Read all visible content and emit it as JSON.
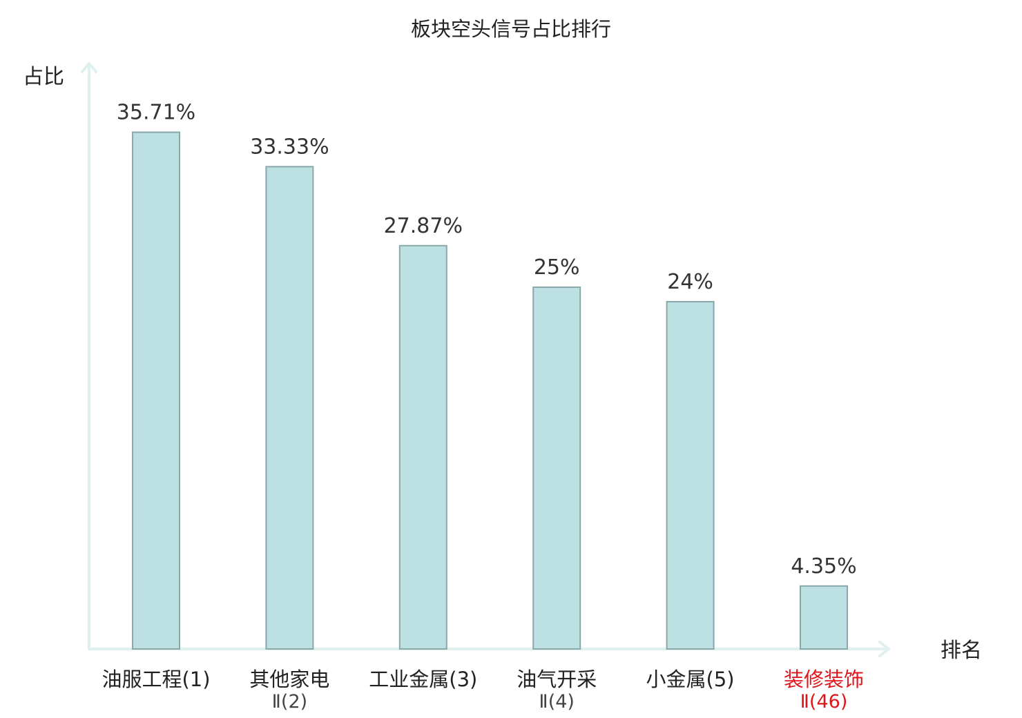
{
  "chart_data": {
    "type": "bar",
    "title": "板块空头信号占比排行",
    "ylabel": "占比",
    "xlabel": "排名",
    "ylim": [
      0,
      37.5
    ],
    "grid": false,
    "categories": [
      {
        "line1": "油服工程(1)",
        "line2": ""
      },
      {
        "line1": "其他家电",
        "line2": "Ⅱ(2)"
      },
      {
        "line1": "工业金属(3)",
        "line2": ""
      },
      {
        "line1": "油气开采",
        "line2": "Ⅱ(4)"
      },
      {
        "line1": "小金属(5)",
        "line2": ""
      },
      {
        "line1": "装修装饰",
        "line2": "Ⅱ(46)"
      }
    ],
    "values": [
      35.71,
      33.33,
      27.87,
      25,
      24,
      4.35
    ],
    "value_labels": [
      "35.71%",
      "33.33%",
      "27.87%",
      "25%",
      "24%",
      "4.35%"
    ],
    "highlight_index": 5,
    "colors": {
      "bar_fill": "#bde0e3",
      "bar_stroke": "#8aa8aa",
      "axis": "#dff1ef",
      "highlight": "#e0151b"
    }
  }
}
